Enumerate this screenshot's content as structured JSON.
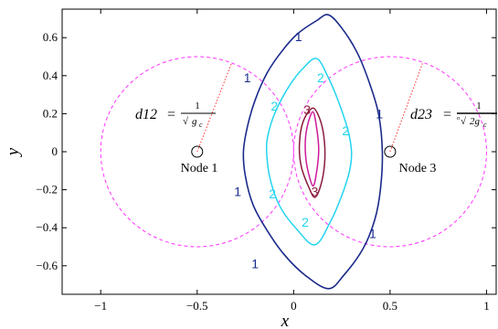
{
  "chart_data": {
    "type": "line",
    "xlabel": "x",
    "ylabel": "y",
    "xlim": [
      -1.2,
      1.05
    ],
    "ylim": [
      -0.75,
      0.75
    ],
    "xticks": [
      -1,
      -0.5,
      0,
      0.5,
      1
    ],
    "xtick_labels": [
      "−1",
      "−0.5",
      "0",
      "0.5",
      "1"
    ],
    "yticks": [
      -0.6,
      -0.4,
      -0.2,
      0,
      0.2,
      0.4,
      0.6
    ],
    "ytick_labels": [
      "−0.6",
      "−0.4",
      "−0.2",
      "0",
      "0.2",
      "0.4",
      "0.6"
    ],
    "grid": false,
    "nodes": [
      {
        "label": "Node 1",
        "x": -0.5,
        "y": 0
      },
      {
        "label": "Node 3",
        "x": 0.5,
        "y": 0
      }
    ],
    "circles": [
      {
        "cx": -0.5,
        "cy": 0,
        "r": 0.5,
        "color": "#ff33ff",
        "style": "dashed"
      },
      {
        "cx": 0.5,
        "cy": 0,
        "r": 0.5,
        "color": "#ff33ff",
        "style": "dashed"
      }
    ],
    "radius_lines": [
      {
        "from": [
          -0.5,
          0
        ],
        "to": [
          -0.32,
          0.47
        ],
        "color": "#ff2a2a"
      },
      {
        "from": [
          0.5,
          0
        ],
        "to": [
          0.67,
          0.47
        ],
        "color": "#ff2a2a"
      }
    ],
    "annotations": {
      "d12": {
        "lhs": "d12",
        "numerator": "1",
        "radical": "g",
        "subscript": "c",
        "root_index": "",
        "x": -0.73,
        "y": 0.21
      },
      "d23": {
        "lhs": "d23",
        "numerator": "1",
        "radical": "2g",
        "subscript": "c",
        "root_index": "n",
        "x": 1.03,
        "y": 0.21
      }
    },
    "series": [
      {
        "level": "1",
        "color": "#1a2a8a",
        "points": [
          [
            0.18,
            0.72
          ],
          [
            0.12,
            0.69
          ],
          [
            0.02,
            0.62
          ],
          [
            -0.06,
            0.53
          ],
          [
            -0.14,
            0.41
          ],
          [
            -0.2,
            0.27
          ],
          [
            -0.24,
            0.13
          ],
          [
            -0.26,
            0
          ],
          [
            -0.25,
            -0.13
          ],
          [
            -0.21,
            -0.28
          ],
          [
            -0.14,
            -0.41
          ],
          [
            -0.05,
            -0.54
          ],
          [
            0.06,
            -0.65
          ],
          [
            0.18,
            -0.72
          ],
          [
            0.26,
            -0.65
          ],
          [
            0.36,
            -0.51
          ],
          [
            0.42,
            -0.36
          ],
          [
            0.45,
            -0.2
          ],
          [
            0.46,
            0
          ],
          [
            0.44,
            0.2
          ],
          [
            0.39,
            0.37
          ],
          [
            0.33,
            0.52
          ],
          [
            0.25,
            0.65
          ],
          [
            0.18,
            0.72
          ]
        ],
        "label_points": [
          [
            0.025,
            0.605
          ],
          [
            -0.24,
            0.39
          ],
          [
            -0.29,
            -0.21
          ],
          [
            -0.2,
            -0.59
          ],
          [
            0.41,
            -0.43
          ],
          [
            0.445,
            0.2
          ]
        ]
      },
      {
        "level": "2",
        "color": "#22d4f0",
        "points": [
          [
            0.12,
            0.49
          ],
          [
            0.05,
            0.44
          ],
          [
            -0.02,
            0.35
          ],
          [
            -0.09,
            0.22
          ],
          [
            -0.13,
            0.1
          ],
          [
            -0.14,
            0
          ],
          [
            -0.12,
            -0.15
          ],
          [
            -0.07,
            -0.29
          ],
          [
            0.01,
            -0.4
          ],
          [
            0.11,
            -0.49
          ],
          [
            0.19,
            -0.37
          ],
          [
            0.25,
            -0.23
          ],
          [
            0.29,
            -0.1
          ],
          [
            0.3,
            0
          ],
          [
            0.28,
            0.12
          ],
          [
            0.23,
            0.27
          ],
          [
            0.18,
            0.39
          ],
          [
            0.12,
            0.49
          ]
        ],
        "label_points": [
          [
            0.14,
            0.39
          ],
          [
            -0.1,
            0.24
          ],
          [
            0.27,
            0.11
          ],
          [
            -0.11,
            -0.22
          ],
          [
            0.06,
            -0.37
          ]
        ]
      },
      {
        "level": "3",
        "color": "#8a1a3a",
        "points": [
          [
            0.1,
            0.23
          ],
          [
            0.05,
            0.16
          ],
          [
            0.03,
            0.04
          ],
          [
            0.04,
            -0.08
          ],
          [
            0.08,
            -0.19
          ],
          [
            0.11,
            -0.24
          ],
          [
            0.14,
            -0.18
          ],
          [
            0.16,
            -0.07
          ],
          [
            0.16,
            0.05
          ],
          [
            0.14,
            0.16
          ],
          [
            0.1,
            0.23
          ]
        ],
        "label_points": [
          [
            0.07,
            0.22
          ],
          [
            0.11,
            -0.21
          ]
        ]
      },
      {
        "level": "4",
        "color": "#cc1a9a",
        "points": [
          [
            0.1,
            0.21
          ],
          [
            0.07,
            0.13
          ],
          [
            0.06,
            0.03
          ],
          [
            0.07,
            -0.08
          ],
          [
            0.1,
            -0.18
          ],
          [
            0.12,
            -0.1
          ],
          [
            0.13,
            0.01
          ],
          [
            0.12,
            0.12
          ],
          [
            0.1,
            0.21
          ]
        ],
        "label_points": []
      }
    ]
  }
}
